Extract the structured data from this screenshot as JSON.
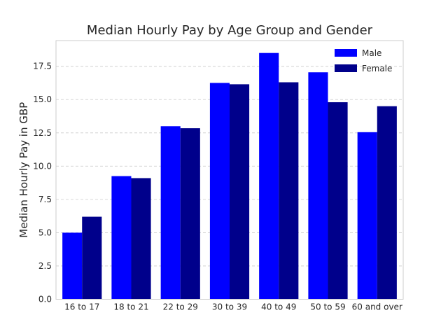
{
  "chart_data": {
    "type": "bar",
    "title": "Median Hourly Pay by Age Group and Gender",
    "xlabel": "",
    "ylabel": "Median Hourly Pay in GBP",
    "categories": [
      "16 to 17",
      "18 to 21",
      "22 to 29",
      "30 to 39",
      "40 to 49",
      "50 to 59",
      "60 and over"
    ],
    "series": [
      {
        "name": "Male",
        "color": "#0000ff",
        "values": [
          5.0,
          9.25,
          13.0,
          16.25,
          18.5,
          17.05,
          12.55
        ]
      },
      {
        "name": "Female",
        "color": "#00008b",
        "values": [
          6.2,
          9.1,
          12.85,
          16.15,
          16.3,
          14.8,
          14.5
        ]
      }
    ],
    "ylim": [
      0,
      19.43
    ],
    "yticks": [
      0.0,
      2.5,
      5.0,
      7.5,
      10.0,
      12.5,
      15.0,
      17.5
    ],
    "ytick_labels": [
      "0.0",
      "2.5",
      "5.0",
      "7.5",
      "10.0",
      "12.5",
      "15.0",
      "17.5"
    ],
    "grid": true,
    "legend_position": "top-right"
  }
}
